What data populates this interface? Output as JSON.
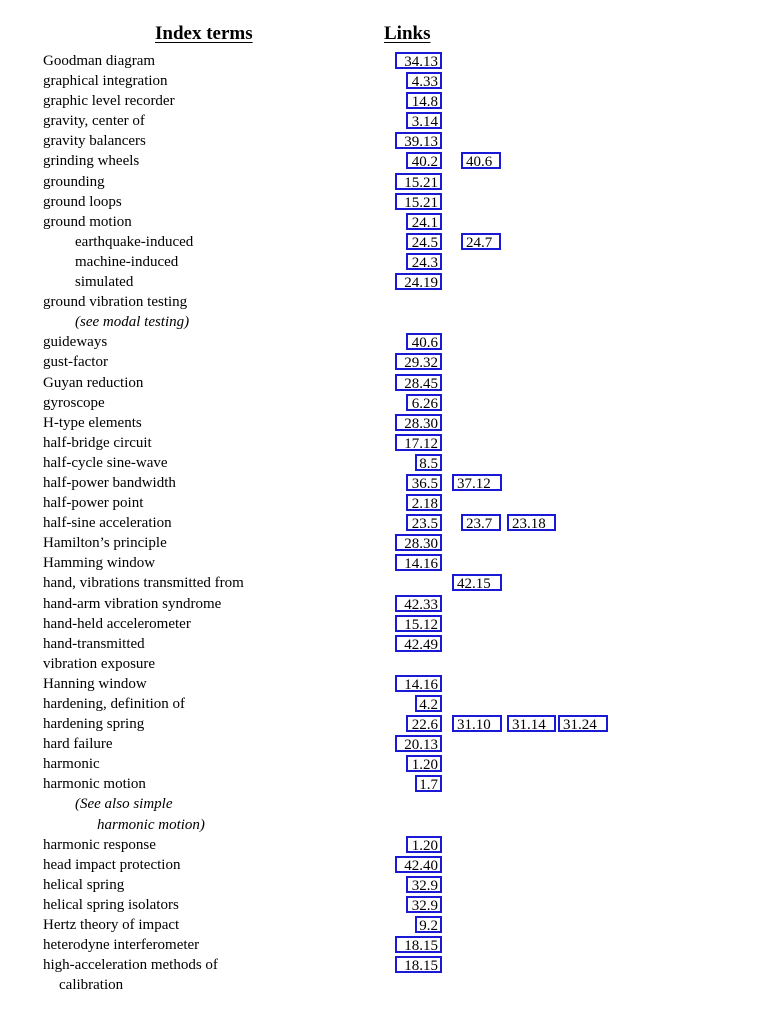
{
  "header": {
    "terms_label": "Index terms",
    "links_label": "Links"
  },
  "rows": [
    {
      "term": "Goodman diagram",
      "links": [
        "34.13"
      ]
    },
    {
      "term": "graphical integration",
      "links": [
        "4.33"
      ]
    },
    {
      "term": "graphic level recorder",
      "links": [
        "14.8"
      ]
    },
    {
      "term": "gravity, center of",
      "links": [
        "3.14"
      ]
    },
    {
      "term": "gravity balancers",
      "links": [
        "39.13"
      ]
    },
    {
      "term": "grinding wheels",
      "links": [
        "40.2",
        "40.6"
      ]
    },
    {
      "term": "grounding",
      "links": [
        "15.21"
      ]
    },
    {
      "term": "ground loops",
      "links": [
        "15.21"
      ]
    },
    {
      "term": "ground motion",
      "links": [
        "24.1"
      ]
    },
    {
      "term": "earthquake-induced",
      "links": [
        "24.5",
        "24.7"
      ]
    },
    {
      "term": "machine-induced",
      "links": [
        "24.3"
      ]
    },
    {
      "term": "simulated",
      "links": [
        "24.19"
      ]
    },
    {
      "term": "ground vibration testing",
      "links": []
    },
    {
      "term": "(see modal testing)",
      "links": []
    },
    {
      "term": "guideways",
      "links": [
        "40.6"
      ]
    },
    {
      "term": "gust-factor",
      "links": [
        "29.32"
      ]
    },
    {
      "term": "Guyan reduction",
      "links": [
        "28.45"
      ]
    },
    {
      "term": "gyroscope",
      "links": [
        "6.26"
      ]
    },
    {
      "term": "H-type elements",
      "links": [
        "28.30"
      ]
    },
    {
      "term": "half-bridge circuit",
      "links": [
        "17.12"
      ]
    },
    {
      "term": "half-cycle sine-wave",
      "links": [
        "8.5"
      ]
    },
    {
      "term": "half-power bandwidth",
      "links": [
        "36.5",
        "37.12"
      ]
    },
    {
      "term": "half-power point",
      "links": [
        "2.18"
      ]
    },
    {
      "term": "half-sine acceleration",
      "links": [
        "23.5",
        "23.7",
        "23.18"
      ]
    },
    {
      "term": "Hamilton’s principle",
      "links": [
        "28.30"
      ]
    },
    {
      "term": "Hamming window",
      "links": [
        "14.16"
      ]
    },
    {
      "term": "hand, vibrations transmitted from",
      "links": [
        "42.15"
      ]
    },
    {
      "term": "hand-arm vibration syndrome",
      "links": [
        "42.33"
      ]
    },
    {
      "term": "hand-held accelerometer",
      "links": [
        "15.12"
      ]
    },
    {
      "term": "hand-transmitted",
      "links": [
        "42.49"
      ]
    },
    {
      "term": "vibration exposure",
      "links": []
    },
    {
      "term": "Hanning window",
      "links": [
        "14.16"
      ]
    },
    {
      "term": "hardening, definition of",
      "links": [
        "4.2"
      ]
    },
    {
      "term": "hardening spring",
      "links": [
        "22.6",
        "31.10",
        "31.14",
        "31.24"
      ]
    },
    {
      "term": "hard failure",
      "links": [
        "20.13"
      ]
    },
    {
      "term": "harmonic",
      "links": [
        "1.20"
      ]
    },
    {
      "term": "harmonic motion",
      "links": [
        "1.7"
      ]
    },
    {
      "term": "(See also simple",
      "links": []
    },
    {
      "term": "harmonic motion)",
      "links": []
    },
    {
      "term": "harmonic response",
      "links": [
        "1.20"
      ]
    },
    {
      "term": "head impact protection",
      "links": [
        "42.40"
      ]
    },
    {
      "term": "helical spring",
      "links": [
        "32.9"
      ]
    },
    {
      "term": "helical spring isolators",
      "links": [
        "32.9"
      ]
    },
    {
      "term": "Hertz theory of impact",
      "links": [
        "9.2"
      ]
    },
    {
      "term": "heterodyne interferometer",
      "links": [
        "18.15"
      ]
    },
    {
      "term": "high-acceleration methods of",
      "links": [
        "18.15"
      ]
    },
    {
      "term": "calibration",
      "links": []
    }
  ]
}
